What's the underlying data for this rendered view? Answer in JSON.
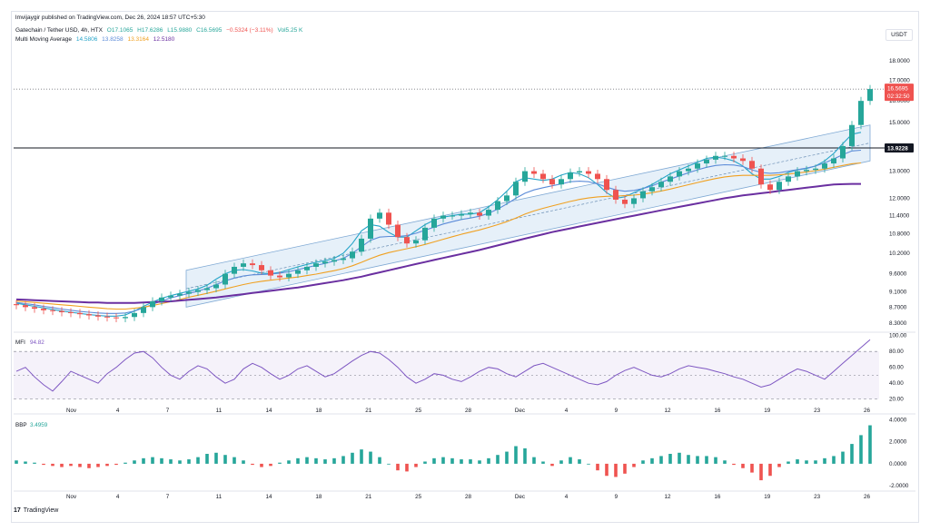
{
  "publisher": "lmvijaygir published on TradingView.com, Dec 26, 2024 18:57 UTC+5:30",
  "header": {
    "symbol": "Gatechain / Tether USD, 4h, HTX",
    "open": "O17.1065",
    "high": "H17.6286",
    "low": "L15.9880",
    "close": "C16.5695",
    "change": "−0.5324 (−3.11%)",
    "volume": "Vol5.25 K",
    "mma_label": "Multi Moving Average",
    "mma_values": [
      "14.5806",
      "13.8258",
      "13.3164",
      "12.5180"
    ],
    "mma_colors": [
      "#26a4c9",
      "#5b8bd8",
      "#f0a020",
      "#6a2fa0"
    ]
  },
  "currency": "USDT",
  "footer": {
    "logo_mark": "17",
    "logo_text": "TradingView"
  },
  "colors": {
    "up": "#26a69a",
    "down": "#ef5350",
    "channel": "#dbeaf7",
    "mfi": "#7e57c2",
    "hline": "#131722"
  },
  "chart_data": [
    {
      "type": "candlestick",
      "title": "Gatechain / Tether USD, 4h, HTX",
      "x_ticks": [
        "Nov",
        "4",
        "7",
        "11",
        "14",
        "18",
        "21",
        "25",
        "28",
        "Dec",
        "4",
        "9",
        "12",
        "16",
        "19",
        "23",
        "26"
      ],
      "y_scale": "log",
      "y_ticks": [
        "18.0000",
        "17.0000",
        "16.0000",
        "15.0000",
        "13.0000",
        "12.0000",
        "11.4000",
        "10.8000",
        "10.2000",
        "9.6000",
        "9.1000",
        "8.7000",
        "8.3000"
      ],
      "ylim": [
        8.1,
        18.6
      ],
      "last_price": "16.5695",
      "countdown": "02:32:50",
      "horizontal_line": "13.9228",
      "close_series": [
        8.75,
        8.7,
        8.66,
        8.62,
        8.6,
        8.57,
        8.55,
        8.52,
        8.49,
        8.46,
        8.44,
        8.42,
        8.45,
        8.55,
        8.7,
        8.85,
        8.95,
        9.0,
        9.05,
        9.1,
        9.15,
        9.2,
        9.3,
        9.6,
        9.8,
        9.9,
        9.85,
        9.7,
        9.55,
        9.5,
        9.6,
        9.7,
        9.8,
        9.9,
        9.95,
        10.0,
        10.05,
        10.25,
        10.65,
        11.3,
        11.5,
        11.1,
        10.7,
        10.5,
        10.6,
        11.0,
        11.3,
        11.4,
        11.4,
        11.45,
        11.5,
        11.4,
        11.6,
        11.9,
        12.1,
        12.6,
        13.0,
        12.9,
        12.7,
        12.5,
        12.7,
        12.95,
        13.0,
        12.9,
        12.7,
        12.3,
        11.95,
        11.8,
        12.0,
        12.25,
        12.4,
        12.6,
        12.8,
        13.0,
        13.1,
        13.3,
        13.45,
        13.6,
        13.6,
        13.5,
        13.4,
        13.1,
        12.5,
        12.3,
        12.6,
        12.8,
        13.0,
        13.05,
        13.1,
        13.3,
        13.5,
        14.0,
        14.9,
        16.0,
        16.57
      ],
      "series": [
        {
          "name": "14.5806",
          "values": [
            8.8,
            8.76,
            8.72,
            8.68,
            8.64,
            8.6,
            8.57,
            8.54,
            8.51,
            8.49,
            8.47,
            8.47,
            8.5,
            8.6,
            8.72,
            8.83,
            8.93,
            9.0,
            9.06,
            9.12,
            9.18,
            9.28,
            9.45,
            9.6,
            9.7,
            9.72,
            9.68,
            9.62,
            9.6,
            9.64,
            9.72,
            9.8,
            9.87,
            9.93,
            9.98,
            10.05,
            10.2,
            10.5,
            10.9,
            11.1,
            11.05,
            10.85,
            10.7,
            10.7,
            10.9,
            11.1,
            11.25,
            11.35,
            11.4,
            11.45,
            11.45,
            11.5,
            11.7,
            11.95,
            12.25,
            12.6,
            12.75,
            12.7,
            12.65,
            12.7,
            12.85,
            12.95,
            12.9,
            12.75,
            12.5,
            12.2,
            12.0,
            12.05,
            12.2,
            12.35,
            12.5,
            12.7,
            12.9,
            13.05,
            13.2,
            13.35,
            13.5,
            13.55,
            13.5,
            13.4,
            13.2,
            12.9,
            12.7,
            12.7,
            12.8,
            12.95,
            13.05,
            13.1,
            13.2,
            13.4,
            13.7,
            14.1,
            14.5,
            14.58
          ]
        },
        {
          "name": "13.8258",
          "values": [
            8.82,
            8.79,
            8.76,
            8.72,
            8.69,
            8.65,
            8.62,
            8.59,
            8.57,
            8.55,
            8.54,
            8.54,
            8.55,
            8.6,
            8.68,
            8.77,
            8.86,
            8.94,
            9.0,
            9.06,
            9.12,
            9.2,
            9.3,
            9.4,
            9.48,
            9.54,
            9.57,
            9.58,
            9.59,
            9.62,
            9.66,
            9.72,
            9.78,
            9.84,
            9.9,
            9.97,
            10.05,
            10.2,
            10.4,
            10.6,
            10.7,
            10.72,
            10.72,
            10.75,
            10.82,
            10.92,
            11.02,
            11.12,
            11.2,
            11.27,
            11.32,
            11.38,
            11.48,
            11.62,
            11.8,
            12.0,
            12.18,
            12.3,
            12.38,
            12.45,
            12.52,
            12.6,
            12.62,
            12.6,
            12.52,
            12.4,
            12.3,
            12.25,
            12.28,
            12.35,
            12.45,
            12.58,
            12.7,
            12.82,
            12.94,
            13.05,
            13.15,
            13.22,
            13.25,
            13.24,
            13.18,
            13.05,
            12.95,
            12.92,
            12.94,
            13.0,
            13.06,
            13.12,
            13.2,
            13.32,
            13.48,
            13.65,
            13.8,
            13.83
          ]
        },
        {
          "name": "13.3164",
          "values": [
            8.86,
            8.84,
            8.82,
            8.8,
            8.78,
            8.76,
            8.74,
            8.72,
            8.7,
            8.68,
            8.66,
            8.65,
            8.65,
            8.67,
            8.7,
            8.74,
            8.79,
            8.84,
            8.9,
            8.96,
            9.01,
            9.06,
            9.12,
            9.18,
            9.24,
            9.3,
            9.35,
            9.39,
            9.42,
            9.45,
            9.48,
            9.51,
            9.55,
            9.59,
            9.64,
            9.69,
            9.75,
            9.83,
            9.93,
            10.04,
            10.14,
            10.22,
            10.28,
            10.34,
            10.4,
            10.47,
            10.55,
            10.63,
            10.71,
            10.79,
            10.86,
            10.93,
            11.01,
            11.1,
            11.2,
            11.32,
            11.45,
            11.56,
            11.65,
            11.73,
            11.81,
            11.89,
            11.96,
            12.01,
            12.05,
            12.07,
            12.08,
            12.09,
            12.11,
            12.15,
            12.2,
            12.26,
            12.33,
            12.41,
            12.49,
            12.57,
            12.65,
            12.72,
            12.78,
            12.82,
            12.84,
            12.84,
            12.84,
            12.84,
            12.86,
            12.89,
            12.93,
            12.97,
            13.02,
            13.08,
            13.15,
            13.22,
            13.29,
            13.32
          ]
        },
        {
          "name": "12.5180",
          "values": [
            8.9,
            8.89,
            8.88,
            8.87,
            8.86,
            8.85,
            8.84,
            8.83,
            8.82,
            8.82,
            8.81,
            8.81,
            8.81,
            8.81,
            8.82,
            8.83,
            8.84,
            8.85,
            8.87,
            8.89,
            8.91,
            8.93,
            8.95,
            8.98,
            9.01,
            9.04,
            9.07,
            9.1,
            9.13,
            9.16,
            9.19,
            9.22,
            9.26,
            9.3,
            9.34,
            9.38,
            9.42,
            9.47,
            9.52,
            9.58,
            9.64,
            9.7,
            9.76,
            9.82,
            9.88,
            9.94,
            10.0,
            10.06,
            10.12,
            10.18,
            10.24,
            10.3,
            10.37,
            10.44,
            10.51,
            10.58,
            10.65,
            10.72,
            10.79,
            10.86,
            10.92,
            10.98,
            11.04,
            11.1,
            11.16,
            11.22,
            11.28,
            11.34,
            11.4,
            11.46,
            11.52,
            11.58,
            11.64,
            11.7,
            11.76,
            11.82,
            11.88,
            11.94,
            12.0,
            12.05,
            12.1,
            12.14,
            12.18,
            12.22,
            12.26,
            12.3,
            12.34,
            12.38,
            12.42,
            12.46,
            12.5,
            12.51,
            12.52,
            12.52
          ]
        }
      ],
      "channel": {
        "start_x_tick": "7",
        "end_x_tick": "26",
        "lower": [
          8.7,
          13.4
        ],
        "upper": [
          9.7,
          14.9
        ]
      }
    },
    {
      "type": "line",
      "title": "MFI",
      "value": "94.82",
      "y_ticks": [
        "100.00",
        "80.00",
        "60.00",
        "40.00",
        "20.00"
      ],
      "ylim": [
        15,
        102
      ],
      "band": [
        20,
        80
      ],
      "values": [
        55,
        60,
        48,
        38,
        30,
        42,
        55,
        50,
        45,
        40,
        52,
        60,
        70,
        78,
        80,
        72,
        60,
        50,
        45,
        55,
        62,
        58,
        48,
        40,
        45,
        58,
        65,
        60,
        52,
        45,
        50,
        58,
        62,
        55,
        48,
        52,
        60,
        68,
        75,
        80,
        78,
        70,
        60,
        48,
        40,
        45,
        52,
        50,
        45,
        42,
        48,
        55,
        60,
        58,
        52,
        48,
        55,
        62,
        65,
        60,
        55,
        50,
        45,
        40,
        38,
        42,
        50,
        56,
        60,
        55,
        50,
        48,
        52,
        58,
        62,
        60,
        58,
        55,
        52,
        48,
        45,
        40,
        35,
        38,
        45,
        52,
        58,
        55,
        50,
        45,
        55,
        65,
        75,
        85,
        94.82
      ]
    },
    {
      "type": "bar",
      "title": "BBP",
      "value": "3.4959",
      "y_ticks": [
        "4.0000",
        "2.0000",
        "0.0000",
        "-2.0000"
      ],
      "ylim": [
        -2.4,
        4.2
      ],
      "values": [
        0.3,
        0.2,
        0.1,
        -0.1,
        -0.2,
        -0.3,
        -0.2,
        -0.3,
        -0.4,
        -0.3,
        -0.2,
        -0.1,
        0.1,
        0.3,
        0.5,
        0.6,
        0.5,
        0.4,
        0.3,
        0.4,
        0.6,
        0.9,
        1.0,
        0.8,
        0.6,
        0.3,
        -0.1,
        -0.3,
        -0.2,
        0.1,
        0.3,
        0.5,
        0.6,
        0.5,
        0.4,
        0.5,
        0.7,
        1.0,
        1.3,
        1.1,
        0.6,
        0.0,
        -0.6,
        -0.7,
        -0.3,
        0.2,
        0.5,
        0.6,
        0.5,
        0.4,
        0.4,
        0.3,
        0.5,
        0.8,
        1.1,
        1.6,
        1.4,
        0.6,
        0.2,
        -0.2,
        0.3,
        0.6,
        0.4,
        0.0,
        -0.6,
        -1.1,
        -1.2,
        -0.9,
        -0.3,
        0.3,
        0.5,
        0.7,
        0.9,
        1.0,
        0.8,
        0.7,
        0.7,
        0.6,
        0.3,
        -0.1,
        -0.4,
        -0.8,
        -1.5,
        -1.1,
        -0.3,
        0.2,
        0.4,
        0.3,
        0.3,
        0.5,
        0.7,
        1.1,
        1.8,
        2.6,
        3.4959
      ]
    }
  ]
}
